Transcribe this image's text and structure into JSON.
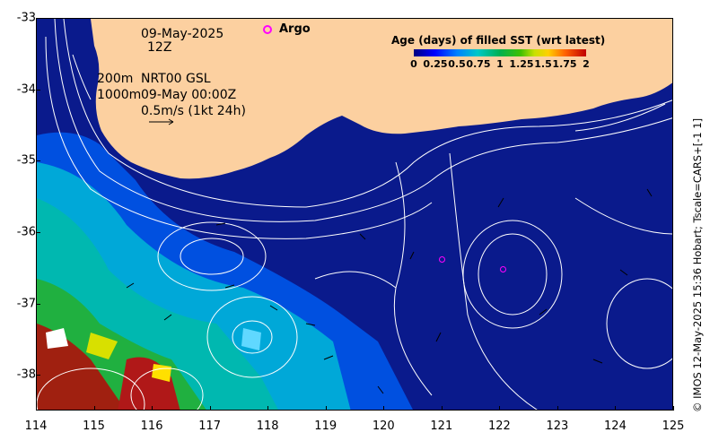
{
  "map": {
    "date": "09-May-2025",
    "time": "12Z",
    "depth_200": "200m",
    "depth_1000": "1000m",
    "product": "NRT00 GSL",
    "analysis_time": "09-May 00:00Z",
    "velocity_scale": "0.5m/s (1kt 24h)",
    "lon_ticks": [
      "114",
      "115",
      "116",
      "117",
      "118",
      "119",
      "120",
      "121",
      "122",
      "123",
      "124",
      "125"
    ],
    "lat_ticks": [
      "-33",
      "-34",
      "-35",
      "-36",
      "-37",
      "-38"
    ],
    "lon_range": [
      114,
      125
    ],
    "lat_range": [
      -33,
      -38.5
    ],
    "argo_floats": [
      {
        "lon": 121.0,
        "lat": -36.38
      },
      {
        "lon": 122.05,
        "lat": -36.52
      }
    ],
    "colors": {
      "ocean": "#0a1a8c",
      "land": "#fcd0a0",
      "argo": "#ff00ff",
      "contour": "#ffffff"
    }
  },
  "legend": {
    "title": "Age (days) of filled SST (wrt latest)",
    "argo_label": "Argo",
    "ticks": [
      "0",
      "0.25",
      "0.5",
      "0.75",
      "1",
      "1.25",
      "1.5",
      "1.75",
      "2"
    ]
  },
  "credit": "© IMOS 12-May-2025 15:36 Hobart; Tscale=CARS+[-1 1]"
}
